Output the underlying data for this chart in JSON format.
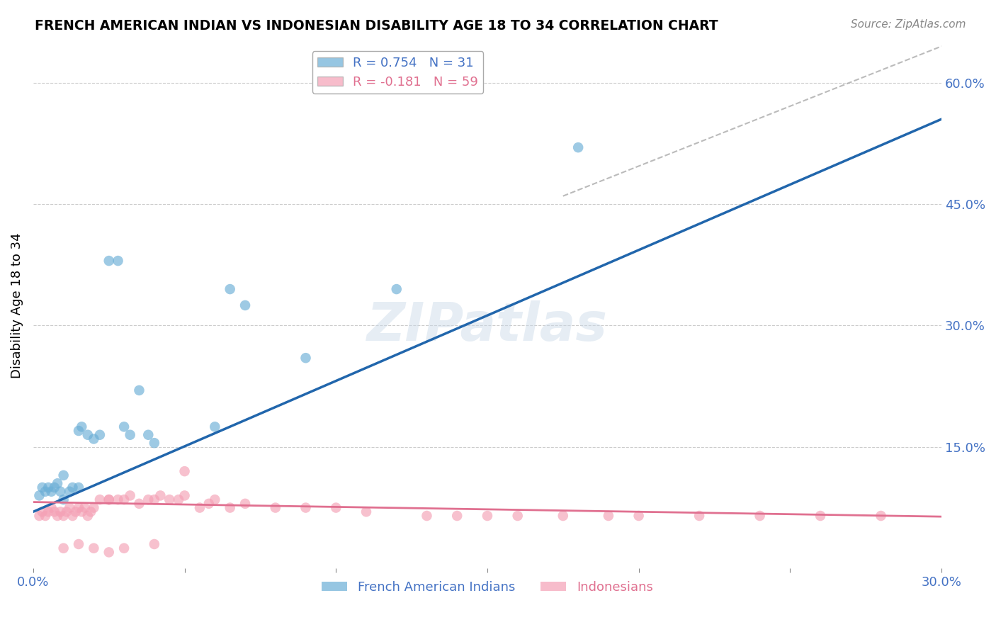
{
  "title": "FRENCH AMERICAN INDIAN VS INDONESIAN DISABILITY AGE 18 TO 34 CORRELATION CHART",
  "source": "Source: ZipAtlas.com",
  "ylabel": "Disability Age 18 to 34",
  "xlim": [
    0.0,
    0.3
  ],
  "ylim": [
    0.0,
    0.65
  ],
  "xticks": [
    0.0,
    0.05,
    0.1,
    0.15,
    0.2,
    0.25,
    0.3
  ],
  "xticklabels": [
    "0.0%",
    "",
    "",
    "",
    "",
    "",
    "30.0%"
  ],
  "yticks_right": [
    0.15,
    0.3,
    0.45,
    0.6
  ],
  "ytick_labels_right": [
    "15.0%",
    "30.0%",
    "45.0%",
    "60.0%"
  ],
  "blue_R": 0.754,
  "blue_N": 31,
  "pink_R": -0.181,
  "pink_N": 59,
  "blue_color": "#6aaed6",
  "pink_color": "#f4a0b5",
  "blue_line_color": "#2166ac",
  "pink_line_color": "#e07090",
  "dashed_line_color": "#aaaaaa",
  "watermark": "ZIPatlas",
  "blue_line_x0": 0.0,
  "blue_line_y0": 0.07,
  "blue_line_x1": 0.3,
  "blue_line_y1": 0.555,
  "pink_line_x0": 0.0,
  "pink_line_y0": 0.082,
  "pink_line_x1": 0.3,
  "pink_line_y1": 0.064,
  "dash_line_x0": 0.175,
  "dash_line_y0": 0.46,
  "dash_line_x1": 0.3,
  "dash_line_y1": 0.645,
  "blue_scatter_x": [
    0.002,
    0.003,
    0.004,
    0.005,
    0.006,
    0.007,
    0.008,
    0.009,
    0.01,
    0.01,
    0.012,
    0.013,
    0.015,
    0.015,
    0.016,
    0.018,
    0.02,
    0.022,
    0.025,
    0.028,
    0.03,
    0.032,
    0.035,
    0.038,
    0.04,
    0.06,
    0.065,
    0.07,
    0.09,
    0.12,
    0.18
  ],
  "blue_scatter_y": [
    0.09,
    0.1,
    0.095,
    0.1,
    0.095,
    0.1,
    0.105,
    0.095,
    0.085,
    0.115,
    0.095,
    0.1,
    0.1,
    0.17,
    0.175,
    0.165,
    0.16,
    0.165,
    0.38,
    0.38,
    0.175,
    0.165,
    0.22,
    0.165,
    0.155,
    0.175,
    0.345,
    0.325,
    0.26,
    0.345,
    0.52
  ],
  "pink_scatter_x": [
    0.002,
    0.003,
    0.004,
    0.005,
    0.006,
    0.007,
    0.008,
    0.009,
    0.01,
    0.011,
    0.012,
    0.013,
    0.014,
    0.015,
    0.016,
    0.017,
    0.018,
    0.019,
    0.02,
    0.022,
    0.025,
    0.025,
    0.028,
    0.03,
    0.032,
    0.035,
    0.038,
    0.04,
    0.042,
    0.045,
    0.048,
    0.05,
    0.055,
    0.058,
    0.06,
    0.065,
    0.07,
    0.08,
    0.09,
    0.1,
    0.11,
    0.13,
    0.14,
    0.15,
    0.16,
    0.175,
    0.19,
    0.2,
    0.22,
    0.24,
    0.26,
    0.28,
    0.01,
    0.015,
    0.02,
    0.025,
    0.03,
    0.04,
    0.05
  ],
  "pink_scatter_y": [
    0.065,
    0.07,
    0.065,
    0.07,
    0.075,
    0.07,
    0.065,
    0.07,
    0.065,
    0.07,
    0.075,
    0.065,
    0.07,
    0.075,
    0.07,
    0.075,
    0.065,
    0.07,
    0.075,
    0.085,
    0.085,
    0.085,
    0.085,
    0.085,
    0.09,
    0.08,
    0.085,
    0.085,
    0.09,
    0.085,
    0.085,
    0.09,
    0.075,
    0.08,
    0.085,
    0.075,
    0.08,
    0.075,
    0.075,
    0.075,
    0.07,
    0.065,
    0.065,
    0.065,
    0.065,
    0.065,
    0.065,
    0.065,
    0.065,
    0.065,
    0.065,
    0.065,
    0.025,
    0.03,
    0.025,
    0.02,
    0.025,
    0.03,
    0.12
  ]
}
